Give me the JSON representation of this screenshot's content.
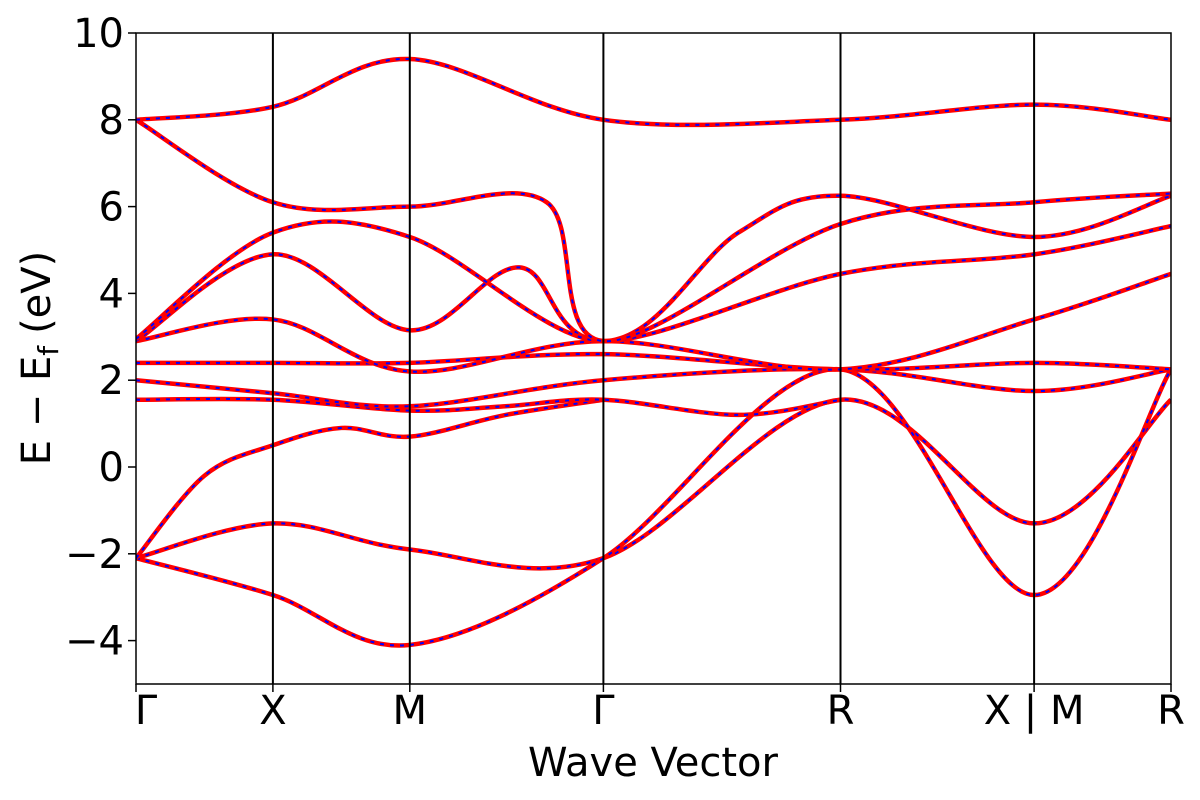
{
  "chart_data": {
    "type": "line",
    "xlabel": "Wave Vector",
    "ylabel": "E − E",
    "ylabel_sub": "f",
    "ylabel_unit": "(eV)",
    "ylim": [
      -5,
      10
    ],
    "yticks": [
      -4,
      -2,
      0,
      2,
      4,
      6,
      8,
      10
    ],
    "ytick_labels": [
      "−4",
      "−2",
      "0",
      "2",
      "4",
      "6",
      "8",
      "10"
    ],
    "kpath": [
      {
        "label": "Γ",
        "x": 0.0
      },
      {
        "label": "X",
        "x": 0.5
      },
      {
        "label": "M",
        "x": 1.0
      },
      {
        "label": "Γ",
        "x": 1.7071
      },
      {
        "label": "R",
        "x": 2.5731
      },
      {
        "label": "X | M",
        "x": 3.2802
      },
      {
        "label": "R",
        "x": 3.7802
      }
    ],
    "xlim": [
      0,
      3.7802
    ],
    "grid": false,
    "colors": {
      "solid": "#ff0000",
      "dashed": "#0000ff"
    },
    "series": [
      {
        "x": [
          0,
          0.5,
          1.0,
          1.7071,
          2.5731,
          3.2802,
          3.7802
        ],
        "y": [
          -2.1,
          -1.3,
          -1.9,
          -2.1,
          1.55,
          -1.3,
          1.55
        ]
      },
      {
        "x": [
          0,
          0.5,
          1.0,
          1.7071,
          2.5731,
          3.2802,
          3.7802
        ],
        "y": [
          -2.1,
          -2.95,
          -4.1,
          -2.1,
          2.25,
          -2.95,
          2.25
        ]
      },
      {
        "x": [
          0,
          0.25,
          0.5,
          0.75,
          1.0,
          1.35,
          1.7071
        ],
        "y": [
          -2.1,
          -0.2,
          0.5,
          0.9,
          0.7,
          1.2,
          1.55
        ]
      },
      {
        "x": [
          0,
          0.5,
          1.0,
          1.35,
          1.7071,
          2.2,
          2.5731
        ],
        "y": [
          1.55,
          1.55,
          1.3,
          1.4,
          1.55,
          1.2,
          1.55
        ]
      },
      {
        "x": [
          0,
          0.5,
          1.0,
          1.7071,
          2.5731,
          3.2802,
          3.7802
        ],
        "y": [
          2.0,
          1.7,
          1.4,
          2.0,
          2.25,
          1.75,
          2.25
        ]
      },
      {
        "x": [
          0,
          0.5,
          1.0,
          1.7071,
          2.5731,
          3.2802,
          3.7802
        ],
        "y": [
          2.4,
          2.4,
          2.4,
          2.6,
          2.25,
          2.4,
          2.25
        ]
      },
      {
        "x": [
          0,
          0.5,
          1.0,
          1.7071,
          2.5731,
          3.2802,
          3.7802
        ],
        "y": [
          2.9,
          3.4,
          2.2,
          2.9,
          2.25,
          3.4,
          4.45
        ]
      },
      {
        "x": [
          0,
          0.5,
          1.0,
          1.4,
          1.7071,
          2.5731,
          3.2802,
          3.7802
        ],
        "y": [
          2.9,
          4.9,
          3.15,
          4.6,
          2.9,
          4.45,
          4.9,
          5.55
        ]
      },
      {
        "x": [
          0,
          0.5,
          1.0,
          1.7071,
          2.2,
          2.5731,
          3.2802,
          3.7802
        ],
        "y": [
          2.95,
          5.4,
          5.3,
          2.9,
          5.4,
          6.25,
          5.3,
          6.25
        ]
      },
      {
        "x": [
          0,
          0.5,
          1.0,
          1.5,
          1.7071,
          2.5731,
          3.2802,
          3.7802
        ],
        "y": [
          8.0,
          6.1,
          6.0,
          6.1,
          2.9,
          5.6,
          6.1,
          6.3
        ]
      },
      {
        "x": [
          0,
          0.5,
          1.0,
          1.7071,
          2.5731,
          3.2802,
          3.7802
        ],
        "y": [
          8.0,
          8.3,
          9.4,
          8.0,
          8.0,
          8.35,
          8.0
        ]
      }
    ]
  }
}
